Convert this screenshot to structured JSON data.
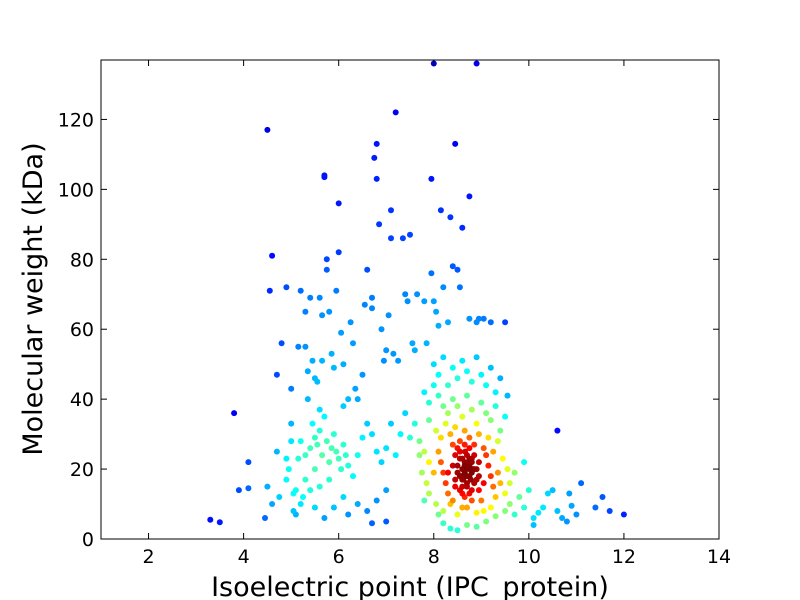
{
  "chart_data": {
    "type": "scatter",
    "title": "",
    "xlabel": "Isoelectric point (IPC_protein)",
    "ylabel": "Molecular weight (kDa)",
    "xlim": [
      1,
      14
    ],
    "ylim": [
      0,
      137
    ],
    "xticks": [
      2,
      4,
      6,
      8,
      10,
      12,
      14
    ],
    "yticks": [
      0,
      20,
      40,
      60,
      80,
      100,
      120
    ],
    "grid": false,
    "legend": "none",
    "colormap": "jet",
    "density_colored": true,
    "series": [
      {
        "points": [
          [
            3.3,
            5.5
          ],
          [
            3.5,
            4.8
          ],
          [
            3.8,
            36
          ],
          [
            3.9,
            14
          ],
          [
            4.1,
            14.5
          ],
          [
            4.1,
            22
          ],
          [
            4.45,
            6
          ],
          [
            4.5,
            117
          ],
          [
            4.5,
            15
          ],
          [
            4.6,
            81
          ],
          [
            4.55,
            71
          ],
          [
            4.7,
            47
          ],
          [
            4.7,
            25
          ],
          [
            4.75,
            12
          ],
          [
            4.8,
            56
          ],
          [
            4.9,
            72
          ],
          [
            4.9,
            23
          ],
          [
            4.95,
            20
          ],
          [
            5.0,
            33
          ],
          [
            5.0,
            43
          ],
          [
            5.05,
            8
          ],
          [
            5.1,
            7
          ],
          [
            5.15,
            55
          ],
          [
            5.15,
            23
          ],
          [
            5.2,
            10
          ],
          [
            5.2,
            71
          ],
          [
            5.3,
            65
          ],
          [
            5.3,
            55
          ],
          [
            5.35,
            48
          ],
          [
            5.35,
            40
          ],
          [
            5.4,
            69
          ],
          [
            5.45,
            51
          ],
          [
            5.5,
            46
          ],
          [
            5.55,
            45
          ],
          [
            5.6,
            69
          ],
          [
            5.65,
            64
          ],
          [
            5.65,
            51
          ],
          [
            5.7,
            104
          ],
          [
            5.7,
            103.5
          ],
          [
            5.75,
            80
          ],
          [
            5.75,
            77
          ],
          [
            5.8,
            65
          ],
          [
            5.85,
            53
          ],
          [
            5.9,
            49
          ],
          [
            5.95,
            71
          ],
          [
            6.0,
            96
          ],
          [
            6.0,
            82
          ],
          [
            6.05,
            59
          ],
          [
            6.1,
            50
          ],
          [
            6.1,
            38
          ],
          [
            6.2,
            40
          ],
          [
            6.25,
            62
          ],
          [
            6.3,
            56
          ],
          [
            6.35,
            43
          ],
          [
            6.4,
            40
          ],
          [
            6.5,
            47
          ],
          [
            6.55,
            67
          ],
          [
            6.6,
            77
          ],
          [
            6.7,
            69
          ],
          [
            6.7,
            66
          ],
          [
            6.75,
            109
          ],
          [
            6.8,
            113
          ],
          [
            6.8,
            103
          ],
          [
            6.85,
            90
          ],
          [
            6.9,
            60
          ],
          [
            6.95,
            51
          ],
          [
            7.0,
            54
          ],
          [
            7.05,
            64
          ],
          [
            7.1,
            94
          ],
          [
            7.1,
            86
          ],
          [
            7.15,
            53
          ],
          [
            7.2,
            122
          ],
          [
            7.25,
            51
          ],
          [
            7.35,
            86
          ],
          [
            7.4,
            70
          ],
          [
            7.45,
            68
          ],
          [
            7.5,
            87
          ],
          [
            7.55,
            56
          ],
          [
            7.6,
            54
          ],
          [
            7.65,
            70
          ],
          [
            7.8,
            68
          ],
          [
            7.85,
            56
          ],
          [
            7.95,
            103
          ],
          [
            7.95,
            76
          ],
          [
            8.0,
            68
          ],
          [
            8.05,
            65
          ],
          [
            8.1,
            61
          ],
          [
            8.15,
            94
          ],
          [
            8.2,
            72
          ],
          [
            8.3,
            62
          ],
          [
            8.35,
            92
          ],
          [
            8.4,
            78
          ],
          [
            8.45,
            113
          ],
          [
            8.5,
            77
          ],
          [
            8.55,
            72
          ],
          [
            8.6,
            89
          ],
          [
            8.75,
            98
          ],
          [
            8.75,
            63
          ],
          [
            8.9,
            62
          ],
          [
            8.95,
            63
          ],
          [
            9.05,
            63
          ],
          [
            9.2,
            62
          ],
          [
            9.5,
            62
          ],
          [
            9.55,
            41
          ],
          [
            8.0,
            136
          ],
          [
            8.9,
            136
          ],
          [
            5.2,
            28
          ],
          [
            5.3,
            24
          ],
          [
            5.4,
            26
          ],
          [
            5.45,
            33
          ],
          [
            5.5,
            29
          ],
          [
            5.55,
            27
          ],
          [
            5.6,
            31
          ],
          [
            5.65,
            24
          ],
          [
            5.7,
            35
          ],
          [
            5.75,
            28
          ],
          [
            5.8,
            22
          ],
          [
            5.85,
            26
          ],
          [
            5.9,
            30
          ],
          [
            5.95,
            25
          ],
          [
            6.0,
            23
          ],
          [
            6.05,
            20
          ],
          [
            6.1,
            27
          ],
          [
            6.15,
            24
          ],
          [
            5.6,
            37
          ],
          [
            5.5,
            20
          ],
          [
            5.3,
            17
          ],
          [
            5.4,
            14
          ],
          [
            5.6,
            15
          ],
          [
            5.8,
            17
          ],
          [
            6.2,
            21
          ],
          [
            6.3,
            18
          ],
          [
            6.4,
            24
          ],
          [
            6.5,
            29
          ],
          [
            6.6,
            33
          ],
          [
            6.7,
            30
          ],
          [
            6.8,
            25
          ],
          [
            6.9,
            22
          ],
          [
            7.0,
            26
          ],
          [
            7.1,
            33
          ],
          [
            7.2,
            24
          ],
          [
            7.3,
            30
          ],
          [
            7.4,
            36
          ],
          [
            7.5,
            29
          ],
          [
            7.6,
            33
          ],
          [
            7.7,
            24
          ],
          [
            5.1,
            14
          ],
          [
            5.25,
            12
          ],
          [
            5.5,
            9
          ],
          [
            5.7,
            6
          ],
          [
            5.9,
            9
          ],
          [
            6.1,
            12
          ],
          [
            6.4,
            10
          ],
          [
            6.6,
            8
          ],
          [
            6.8,
            11
          ],
          [
            7.0,
            14
          ],
          [
            6.7,
            4.5
          ],
          [
            7.0,
            5
          ],
          [
            6.2,
            7
          ],
          [
            4.6,
            10
          ],
          [
            4.9,
            17
          ],
          [
            5.0,
            28
          ],
          [
            5.05,
            13
          ],
          [
            9.8,
            12
          ],
          [
            9.9,
            9
          ],
          [
            10.0,
            14
          ],
          [
            10.1,
            6
          ],
          [
            10.2,
            7.5
          ],
          [
            10.3,
            9
          ],
          [
            10.4,
            13
          ],
          [
            10.5,
            14
          ],
          [
            10.6,
            31
          ],
          [
            10.6,
            8
          ],
          [
            10.7,
            6
          ],
          [
            10.8,
            5
          ],
          [
            10.85,
            13
          ],
          [
            10.9,
            9.5
          ],
          [
            11.0,
            7
          ],
          [
            11.1,
            16
          ],
          [
            11.4,
            9
          ],
          [
            11.55,
            12
          ],
          [
            11.7,
            8
          ],
          [
            12.0,
            7
          ],
          [
            10.1,
            4
          ],
          [
            9.7,
            7
          ],
          [
            9.6,
            16
          ],
          [
            9.7,
            19
          ],
          [
            9.9,
            22
          ],
          [
            8.0,
            50
          ],
          [
            8.1,
            47
          ],
          [
            8.2,
            52
          ],
          [
            8.3,
            44
          ],
          [
            8.4,
            49
          ],
          [
            8.5,
            46
          ],
          [
            8.6,
            51
          ],
          [
            8.7,
            48
          ],
          [
            8.8,
            45
          ],
          [
            8.9,
            52
          ],
          [
            9.0,
            47
          ],
          [
            9.1,
            44
          ],
          [
            9.2,
            49
          ],
          [
            9.3,
            42
          ],
          [
            9.4,
            46
          ],
          [
            7.8,
            42
          ],
          [
            7.9,
            39
          ],
          [
            8.0,
            44
          ],
          [
            8.1,
            41
          ],
          [
            8.2,
            38
          ],
          [
            8.3,
            36
          ],
          [
            8.4,
            40
          ],
          [
            8.5,
            38
          ],
          [
            8.6,
            35
          ],
          [
            8.7,
            41
          ],
          [
            8.8,
            37
          ],
          [
            8.9,
            33
          ],
          [
            9.0,
            39
          ],
          [
            9.1,
            36
          ],
          [
            9.2,
            34
          ],
          [
            9.3,
            38
          ],
          [
            9.4,
            31
          ],
          [
            9.5,
            35
          ],
          [
            7.9,
            34
          ],
          [
            8.05,
            31
          ],
          [
            8.15,
            29
          ],
          [
            8.25,
            33
          ],
          [
            8.35,
            30
          ],
          [
            8.45,
            32
          ],
          [
            8.55,
            28
          ],
          [
            8.65,
            31
          ],
          [
            8.75,
            29
          ],
          [
            8.85,
            27
          ],
          [
            8.95,
            30
          ],
          [
            9.05,
            26
          ],
          [
            9.15,
            29
          ],
          [
            9.25,
            25
          ],
          [
            9.35,
            28
          ],
          [
            7.7,
            28
          ],
          [
            7.8,
            25
          ],
          [
            7.9,
            22
          ],
          [
            8.0,
            19
          ],
          [
            7.85,
            16
          ],
          [
            7.9,
            13
          ],
          [
            8.05,
            10
          ],
          [
            8.1,
            7
          ],
          [
            8.2,
            4.5
          ],
          [
            8.35,
            3
          ],
          [
            8.5,
            2.5
          ],
          [
            8.7,
            4
          ],
          [
            8.9,
            3.5
          ],
          [
            9.1,
            5
          ],
          [
            9.3,
            6.5
          ],
          [
            9.5,
            8
          ],
          [
            9.6,
            10
          ],
          [
            9.5,
            13
          ],
          [
            9.55,
            20
          ],
          [
            9.45,
            23
          ],
          [
            7.75,
            19
          ],
          [
            7.8,
            11
          ],
          [
            8.1,
            25
          ],
          [
            8.15,
            22
          ],
          [
            8.2,
            19
          ],
          [
            8.25,
            16
          ],
          [
            8.3,
            13
          ],
          [
            8.35,
            10
          ],
          [
            8.4,
            27
          ],
          [
            8.45,
            24
          ],
          [
            8.5,
            21
          ],
          [
            8.55,
            18
          ],
          [
            8.6,
            15
          ],
          [
            8.65,
            12
          ],
          [
            8.7,
            9
          ],
          [
            8.75,
            26
          ],
          [
            8.8,
            23
          ],
          [
            8.85,
            20
          ],
          [
            8.9,
            17
          ],
          [
            8.95,
            14
          ],
          [
            9.0,
            11
          ],
          [
            9.05,
            8
          ],
          [
            9.1,
            24
          ],
          [
            9.15,
            21
          ],
          [
            9.2,
            18
          ],
          [
            9.25,
            15
          ],
          [
            9.3,
            12
          ],
          [
            9.35,
            19
          ],
          [
            9.4,
            16
          ],
          [
            8.2,
            8
          ],
          [
            8.5,
            7
          ],
          [
            8.9,
            7.5
          ],
          [
            9.2,
            9
          ],
          [
            8.4,
            11
          ],
          [
            8.6,
            9
          ],
          [
            8.8,
            11
          ],
          [
            8.3,
            19
          ],
          [
            8.45,
            17
          ],
          [
            8.55,
            25
          ],
          [
            8.65,
            27
          ],
          [
            8.75,
            13
          ],
          [
            8.95,
            22
          ],
          [
            9.05,
            16
          ],
          [
            8.4,
            21
          ],
          [
            8.5,
            19
          ],
          [
            8.55,
            23
          ],
          [
            8.6,
            17
          ],
          [
            8.65,
            21
          ],
          [
            8.7,
            24
          ],
          [
            8.75,
            18
          ],
          [
            8.8,
            22
          ],
          [
            8.85,
            16
          ],
          [
            8.9,
            20
          ],
          [
            8.45,
            15
          ],
          [
            8.6,
            13
          ],
          [
            8.7,
            15
          ],
          [
            8.8,
            14
          ],
          [
            8.95,
            18
          ],
          [
            8.5,
            26
          ],
          [
            8.65,
            19
          ],
          [
            8.75,
            20
          ],
          [
            8.85,
            24
          ],
          [
            8.55,
            14
          ],
          [
            8.6,
            20
          ],
          [
            8.65,
            22
          ],
          [
            8.7,
            18
          ],
          [
            8.75,
            21
          ],
          [
            8.8,
            19
          ],
          [
            8.7,
            16
          ],
          [
            8.6,
            23
          ],
          [
            8.75,
            23
          ],
          [
            8.68,
            20
          ],
          [
            8.62,
            17
          ],
          [
            8.78,
            17
          ],
          [
            8.72,
            22
          ],
          [
            8.66,
            25
          ],
          [
            8.58,
            18
          ],
          [
            8.82,
            20
          ]
        ]
      }
    ]
  }
}
